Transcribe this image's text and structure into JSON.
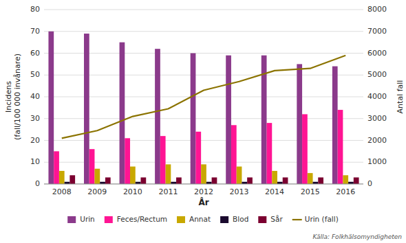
{
  "chart_data": {
    "type": "bar",
    "categories": [
      "2008",
      "2009",
      "2010",
      "2011",
      "2012",
      "2013",
      "2014",
      "2015",
      "2016"
    ],
    "series": [
      {
        "name": "Urin",
        "color": "#8B3A8B",
        "values": [
          70,
          69,
          65,
          62,
          60,
          59,
          59,
          55,
          54
        ]
      },
      {
        "name": "Feces/Rectum",
        "color": "#FF1493",
        "values": [
          15,
          16,
          21,
          22,
          24,
          27,
          28,
          32,
          34
        ]
      },
      {
        "name": "Annat",
        "color": "#C8A800",
        "values": [
          6,
          7,
          8,
          9,
          9,
          8,
          6,
          5,
          4
        ]
      },
      {
        "name": "Blod",
        "color": "#1A0A2E",
        "values": [
          1,
          1,
          1,
          1,
          1,
          1,
          1,
          1,
          1
        ]
      },
      {
        "name": "Sår",
        "color": "#7B0030",
        "values": [
          4,
          3,
          3,
          3,
          3,
          3,
          3,
          3,
          3
        ]
      },
      {
        "name": "Urin (fall)",
        "type": "line",
        "axis": "y2",
        "color": "#8B7300",
        "values": [
          2100,
          2450,
          3100,
          3450,
          4300,
          4700,
          5200,
          5300,
          5900
        ]
      }
    ],
    "x_label": "År",
    "y_label": "Incidens\n(fall/100 000 invånare)",
    "y2_label": "Antal fall",
    "ylim": [
      0,
      80
    ],
    "yticks": [
      0,
      10,
      20,
      30,
      40,
      50,
      60,
      70,
      80
    ],
    "y2lim": [
      0,
      8000
    ],
    "y2ticks": [
      0,
      1000,
      2000,
      3000,
      4000,
      5000,
      6000,
      7000,
      8000
    ],
    "grid": true,
    "legend": "bottom",
    "annotations": [
      "Källa: Folkhälsomyndigheten"
    ]
  }
}
